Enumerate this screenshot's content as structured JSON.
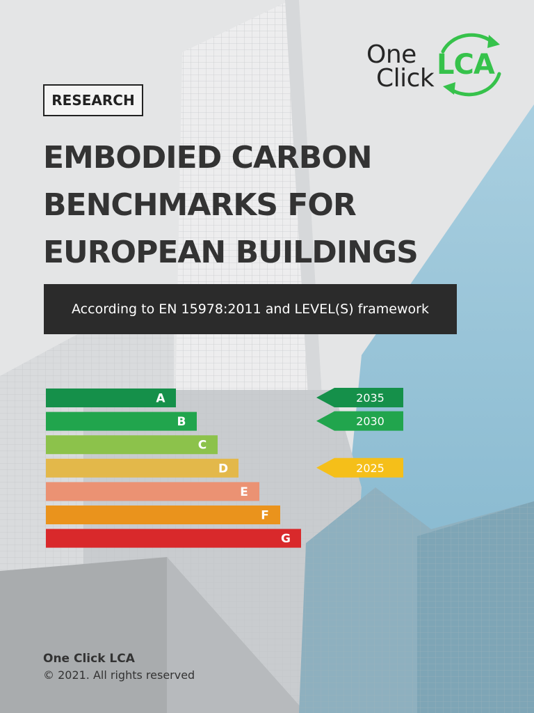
{
  "logo": {
    "line1": "One",
    "line2": "Click",
    "mark": "LCA",
    "icon": "circular-arrows-icon"
  },
  "tag": "RESEARCH",
  "title_lines": [
    "EMBODIED CARBON",
    "BENCHMARKS FOR",
    "EUROPEAN BUILDINGS"
  ],
  "subtitle": "According to EN 15978:2011 and LEVEL(S) framework",
  "rating_scale": {
    "grades": [
      {
        "label": "A",
        "color": "#15904a"
      },
      {
        "label": "B",
        "color": "#21a54d"
      },
      {
        "label": "C",
        "color": "#8cc24b"
      },
      {
        "label": "D",
        "color": "#e3b84a"
      },
      {
        "label": "E",
        "color": "#eb9273"
      },
      {
        "label": "F",
        "color": "#ea931c"
      },
      {
        "label": "G",
        "color": "#d9292b"
      }
    ],
    "targets": [
      {
        "year": "2035",
        "grade": "A",
        "color": "#15904a"
      },
      {
        "year": "2030",
        "grade": "B",
        "color": "#21a54d"
      },
      {
        "year": "2025",
        "grade": "D",
        "color": "#f5bf19"
      }
    ]
  },
  "footer": {
    "brand": "One Click LCA",
    "copyright": "© 2021. All rights reserved"
  },
  "colors": {
    "brand_green": "#36c24b",
    "dark": "#2b2b2b",
    "sky_blue": "#7fb5cd"
  }
}
